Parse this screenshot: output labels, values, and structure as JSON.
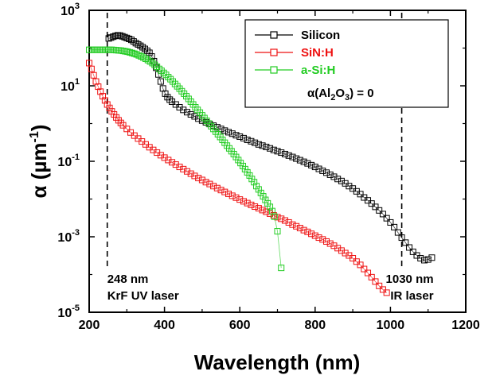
{
  "chart_data": {
    "type": "scatter",
    "title": "",
    "xlabel": "Wavelength (nm)",
    "ylabel": {
      "symbol": "α",
      "open": " (µm",
      "sup": "-1",
      "close": ")"
    },
    "xlim": [
      200,
      1200
    ],
    "ylim": [
      1e-05,
      1000
    ],
    "yscale": "log",
    "grid": false,
    "legend_position": "top-right",
    "x_ticks": [
      "200",
      "400",
      "600",
      "800",
      "1000",
      "1200"
    ],
    "y_ticks": [
      {
        "value": 1000,
        "base": "10",
        "exp": "3"
      },
      {
        "value": 10,
        "base": "10",
        "exp": "1"
      },
      {
        "value": 0.1,
        "base": "10",
        "exp": "-1"
      },
      {
        "value": 0.001,
        "base": "10",
        "exp": "-3"
      },
      {
        "value": 1e-05,
        "base": "10",
        "exp": "-5"
      }
    ],
    "series": [
      {
        "name": "Silicon",
        "color": "#000000",
        "points": [
          [
            252,
            180
          ],
          [
            258,
            190
          ],
          [
            264,
            200
          ],
          [
            270,
            210
          ],
          [
            276,
            218
          ],
          [
            282,
            215
          ],
          [
            288,
            205
          ],
          [
            294,
            195
          ],
          [
            300,
            185
          ],
          [
            306,
            175
          ],
          [
            312,
            165
          ],
          [
            318,
            150
          ],
          [
            324,
            135
          ],
          [
            330,
            125
          ],
          [
            336,
            115
          ],
          [
            342,
            105
          ],
          [
            348,
            95
          ],
          [
            354,
            85
          ],
          [
            360,
            75
          ],
          [
            366,
            60
          ],
          [
            372,
            45
          ],
          [
            378,
            30
          ],
          [
            384,
            20
          ],
          [
            390,
            13
          ],
          [
            396,
            8.5
          ],
          [
            402,
            6.2
          ],
          [
            408,
            5.0
          ],
          [
            414,
            4.3
          ],
          [
            420,
            3.8
          ],
          [
            430,
            3.2
          ],
          [
            440,
            2.7
          ],
          [
            450,
            2.3
          ],
          [
            460,
            2.0
          ],
          [
            470,
            1.75
          ],
          [
            480,
            1.55
          ],
          [
            490,
            1.35
          ],
          [
            500,
            1.2
          ],
          [
            510,
            1.08
          ],
          [
            520,
            0.97
          ],
          [
            530,
            0.88
          ],
          [
            540,
            0.8
          ],
          [
            550,
            0.72
          ],
          [
            560,
            0.65
          ],
          [
            570,
            0.59
          ],
          [
            580,
            0.54
          ],
          [
            590,
            0.49
          ],
          [
            600,
            0.45
          ],
          [
            610,
            0.41
          ],
          [
            620,
            0.37
          ],
          [
            630,
            0.34
          ],
          [
            640,
            0.31
          ],
          [
            650,
            0.28
          ],
          [
            660,
            0.26
          ],
          [
            670,
            0.24
          ],
          [
            680,
            0.22
          ],
          [
            690,
            0.2
          ],
          [
            700,
            0.185
          ],
          [
            710,
            0.17
          ],
          [
            720,
            0.155
          ],
          [
            730,
            0.142
          ],
          [
            740,
            0.13
          ],
          [
            750,
            0.118
          ],
          [
            760,
            0.107
          ],
          [
            770,
            0.097
          ],
          [
            780,
            0.088
          ],
          [
            790,
            0.079
          ],
          [
            800,
            0.071
          ],
          [
            810,
            0.063
          ],
          [
            820,
            0.056
          ],
          [
            830,
            0.05
          ],
          [
            840,
            0.044
          ],
          [
            850,
            0.039
          ],
          [
            860,
            0.034
          ],
          [
            870,
            0.03
          ],
          [
            880,
            0.026
          ],
          [
            890,
            0.022
          ],
          [
            900,
            0.019
          ],
          [
            910,
            0.016
          ],
          [
            920,
            0.0135
          ],
          [
            930,
            0.011
          ],
          [
            940,
            0.0092
          ],
          [
            950,
            0.0076
          ],
          [
            960,
            0.0062
          ],
          [
            970,
            0.005
          ],
          [
            980,
            0.004
          ],
          [
            990,
            0.0031
          ],
          [
            1000,
            0.0024
          ],
          [
            1010,
            0.0018
          ],
          [
            1020,
            0.0013
          ],
          [
            1030,
            0.00095
          ],
          [
            1040,
            0.0007
          ],
          [
            1050,
            0.00052
          ],
          [
            1060,
            0.0004
          ],
          [
            1070,
            0.00032
          ],
          [
            1080,
            0.00027
          ],
          [
            1090,
            0.00024
          ],
          [
            1100,
            0.00025
          ],
          [
            1110,
            0.00028
          ]
        ]
      },
      {
        "name": "SiN:H",
        "color": "#ee1111",
        "points": [
          [
            200,
            40
          ],
          [
            206,
            28
          ],
          [
            212,
            19
          ],
          [
            218,
            13
          ],
          [
            224,
            9.5
          ],
          [
            230,
            7
          ],
          [
            236,
            5.3
          ],
          [
            242,
            4.1
          ],
          [
            248,
            3.2
          ],
          [
            254,
            2.6
          ],
          [
            260,
            2.1
          ],
          [
            266,
            1.75
          ],
          [
            272,
            1.45
          ],
          [
            278,
            1.22
          ],
          [
            284,
            1.04
          ],
          [
            290,
            0.9
          ],
          [
            300,
            0.72
          ],
          [
            310,
            0.58
          ],
          [
            320,
            0.48
          ],
          [
            330,
            0.4
          ],
          [
            340,
            0.335
          ],
          [
            350,
            0.28
          ],
          [
            360,
            0.236
          ],
          [
            370,
            0.2
          ],
          [
            380,
            0.17
          ],
          [
            390,
            0.145
          ],
          [
            400,
            0.125
          ],
          [
            410,
            0.108
          ],
          [
            420,
            0.094
          ],
          [
            430,
            0.082
          ],
          [
            440,
            0.071
          ],
          [
            450,
            0.062
          ],
          [
            460,
            0.054
          ],
          [
            470,
            0.047
          ],
          [
            480,
            0.041
          ],
          [
            490,
            0.036
          ],
          [
            500,
            0.032
          ],
          [
            510,
            0.028
          ],
          [
            520,
            0.025
          ],
          [
            530,
            0.022
          ],
          [
            540,
            0.0195
          ],
          [
            550,
            0.0173
          ],
          [
            560,
            0.0154
          ],
          [
            570,
            0.0137
          ],
          [
            580,
            0.0122
          ],
          [
            590,
            0.0109
          ],
          [
            600,
            0.0097
          ],
          [
            610,
            0.0087
          ],
          [
            620,
            0.0078
          ],
          [
            630,
            0.007
          ],
          [
            640,
            0.0063
          ],
          [
            650,
            0.0057
          ],
          [
            660,
            0.0051
          ],
          [
            670,
            0.0046
          ],
          [
            680,
            0.0041
          ],
          [
            690,
            0.0037
          ],
          [
            700,
            0.0033
          ],
          [
            710,
            0.003
          ],
          [
            720,
            0.0027
          ],
          [
            730,
            0.0024
          ],
          [
            740,
            0.0021
          ],
          [
            750,
            0.0019
          ],
          [
            760,
            0.0017
          ],
          [
            770,
            0.0015
          ],
          [
            780,
            0.00135
          ],
          [
            790,
            0.0012
          ],
          [
            800,
            0.00107
          ],
          [
            810,
            0.00095
          ],
          [
            820,
            0.00085
          ],
          [
            830,
            0.00075
          ],
          [
            840,
            0.00066
          ],
          [
            850,
            0.00058
          ],
          [
            860,
            0.0005
          ],
          [
            870,
            0.00043
          ],
          [
            880,
            0.00037
          ],
          [
            890,
            0.00032
          ],
          [
            900,
            0.00027
          ],
          [
            910,
            0.00022
          ],
          [
            920,
            0.00018
          ],
          [
            930,
            0.00014
          ],
          [
            940,
            0.00011
          ],
          [
            950,
            8.5e-05
          ],
          [
            960,
            6.5e-05
          ],
          [
            970,
            5e-05
          ],
          [
            980,
            4e-05
          ],
          [
            990,
            3.3e-05
          ]
        ]
      },
      {
        "name": "a-Si:H",
        "color": "#22cc22",
        "points": [
          [
            200,
            90
          ],
          [
            206,
            90
          ],
          [
            212,
            90
          ],
          [
            218,
            90
          ],
          [
            224,
            90
          ],
          [
            230,
            90
          ],
          [
            236,
            90
          ],
          [
            242,
            90
          ],
          [
            248,
            90
          ],
          [
            254,
            90
          ],
          [
            260,
            90
          ],
          [
            266,
            89
          ],
          [
            272,
            88
          ],
          [
            278,
            87
          ],
          [
            284,
            86
          ],
          [
            290,
            84
          ],
          [
            296,
            82
          ],
          [
            302,
            80
          ],
          [
            308,
            77
          ],
          [
            314,
            74
          ],
          [
            320,
            71
          ],
          [
            326,
            68
          ],
          [
            332,
            64
          ],
          [
            338,
            60
          ],
          [
            344,
            56
          ],
          [
            350,
            52
          ],
          [
            356,
            48
          ],
          [
            362,
            44
          ],
          [
            368,
            40
          ],
          [
            374,
            36
          ],
          [
            380,
            32
          ],
          [
            386,
            28
          ],
          [
            392,
            25
          ],
          [
            398,
            22
          ],
          [
            404,
            19.5
          ],
          [
            410,
            17
          ],
          [
            416,
            15
          ],
          [
            422,
            13
          ],
          [
            428,
            11.2
          ],
          [
            434,
            9.7
          ],
          [
            440,
            8.4
          ],
          [
            446,
            7.2
          ],
          [
            452,
            6.2
          ],
          [
            458,
            5.3
          ],
          [
            464,
            4.5
          ],
          [
            470,
            3.8
          ],
          [
            476,
            3.2
          ],
          [
            482,
            2.7
          ],
          [
            488,
            2.3
          ],
          [
            494,
            1.95
          ],
          [
            500,
            1.65
          ],
          [
            506,
            1.4
          ],
          [
            512,
            1.18
          ],
          [
            518,
            1.0
          ],
          [
            524,
            0.85
          ],
          [
            530,
            0.72
          ],
          [
            536,
            0.61
          ],
          [
            542,
            0.52
          ],
          [
            548,
            0.44
          ],
          [
            554,
            0.37
          ],
          [
            560,
            0.31
          ],
          [
            566,
            0.26
          ],
          [
            572,
            0.22
          ],
          [
            578,
            0.185
          ],
          [
            584,
            0.155
          ],
          [
            590,
            0.13
          ],
          [
            596,
            0.108
          ],
          [
            602,
            0.09
          ],
          [
            608,
            0.075
          ],
          [
            614,
            0.062
          ],
          [
            620,
            0.051
          ],
          [
            626,
            0.042
          ],
          [
            632,
            0.034
          ],
          [
            638,
            0.028
          ],
          [
            644,
            0.022
          ],
          [
            650,
            0.018
          ],
          [
            656,
            0.0145
          ],
          [
            662,
            0.0118
          ],
          [
            668,
            0.0095
          ],
          [
            674,
            0.0077
          ],
          [
            680,
            0.0062
          ],
          [
            686,
            0.0048
          ],
          [
            692,
            0.0034
          ],
          [
            700,
            0.0014
          ],
          [
            710,
            0.00015
          ]
        ]
      }
    ],
    "annotations": [
      {
        "x": 248,
        "lines": [
          "248 nm",
          "KrF UV laser"
        ],
        "align": "left"
      },
      {
        "x": 1030,
        "lines": [
          "1030 nm",
          "IR laser"
        ],
        "align": "right"
      }
    ],
    "legend_note": {
      "prefix": "α(Al",
      "sub1": "2",
      "mid": "O",
      "sub2": "3",
      "suffix": ") = 0"
    }
  }
}
